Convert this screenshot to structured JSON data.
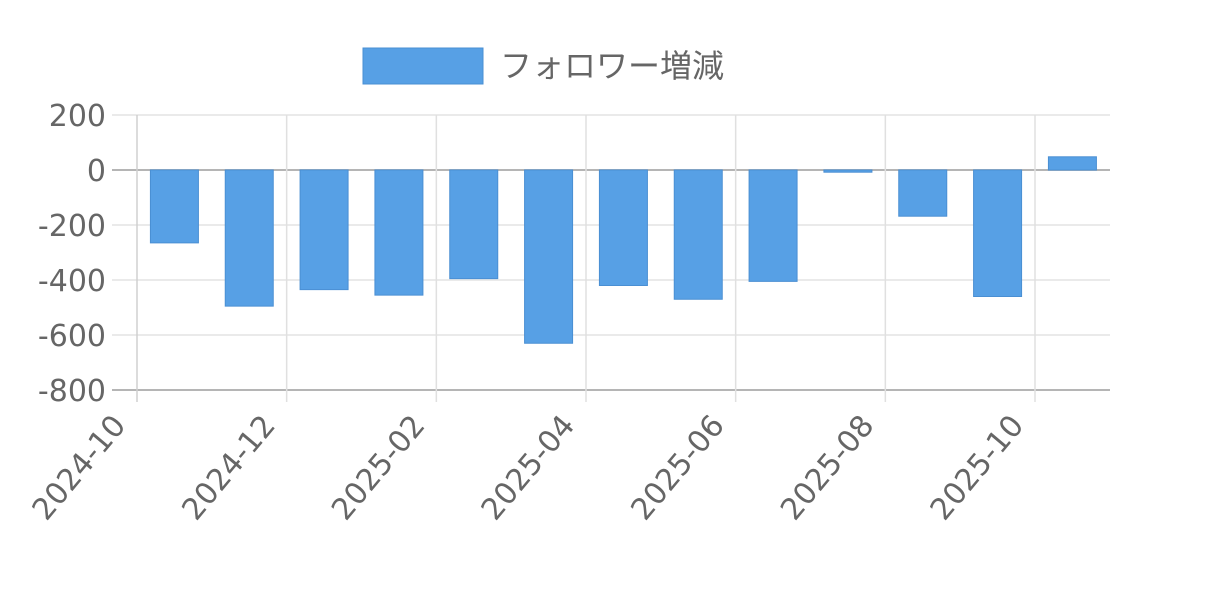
{
  "chart_data": {
    "type": "bar",
    "legend": {
      "position": "top",
      "label": "フォロワー増減"
    },
    "series": [
      {
        "name": "フォロワー増減",
        "color": "#57a0e5",
        "values": [
          {
            "x": "2024-10",
            "y": -265
          },
          {
            "x": "2024-11",
            "y": -495
          },
          {
            "x": "2024-12",
            "y": -435
          },
          {
            "x": "2025-01",
            "y": -455
          },
          {
            "x": "2025-02",
            "y": -395
          },
          {
            "x": "2025-03",
            "y": -630
          },
          {
            "x": "2025-04",
            "y": -420
          },
          {
            "x": "2025-05",
            "y": -470
          },
          {
            "x": "2025-06",
            "y": -405
          },
          {
            "x": "2025-07",
            "y": -8
          },
          {
            "x": "2025-08",
            "y": -168
          },
          {
            "x": "2025-09",
            "y": -460
          },
          {
            "x": "2025-10",
            "y": 48
          }
        ]
      }
    ],
    "x_tick_labels": [
      "2024-10",
      "2024-12",
      "2025-02",
      "2025-04",
      "2025-06",
      "2025-08",
      "2025-10"
    ],
    "y_ticks": [
      200,
      0,
      -200,
      -400,
      -600,
      -800
    ],
    "ylim": [
      -800,
      200
    ],
    "grid": true,
    "xlabel": "",
    "ylabel": ""
  }
}
